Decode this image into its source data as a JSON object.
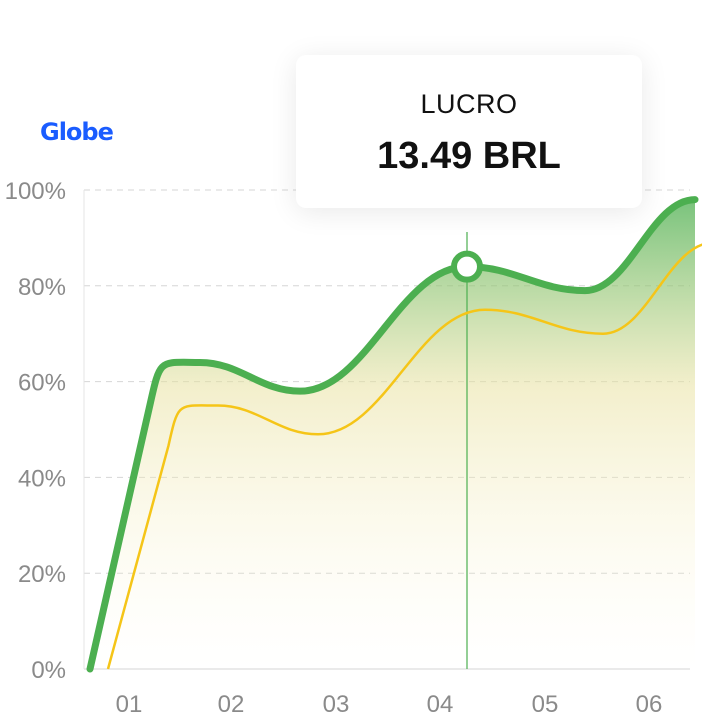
{
  "brand": {
    "logo_text": "Globe"
  },
  "tooltip": {
    "label": "LUCRO",
    "value": "13.49 BRL"
  },
  "colors": {
    "primary_line": "#4caf50",
    "secondary_line": "#f5c518",
    "area_top": "#4caf50",
    "area_bottom": "#fff6c8",
    "grid": "#d6d6d6",
    "axis_text": "#8a8a8a"
  },
  "chart_data": {
    "type": "line",
    "categories": [
      "01",
      "02",
      "03",
      "04",
      "05",
      "06"
    ],
    "y_ticks": [
      "0%",
      "20%",
      "40%",
      "60%",
      "80%",
      "100%"
    ],
    "ylim": [
      0,
      100
    ],
    "grid": true,
    "highlight_index": 3,
    "series": [
      {
        "values": [
          0,
          64,
          58,
          84,
          79,
          98
        ]
      },
      {
        "values": [
          0,
          55,
          49,
          75,
          70,
          89
        ]
      }
    ]
  }
}
